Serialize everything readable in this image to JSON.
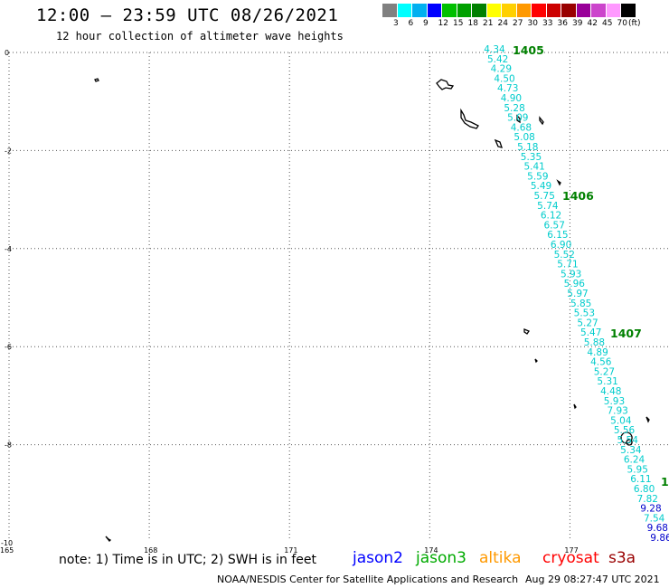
{
  "header": {
    "title": "12:00 — 23:59 UTC 08/26/2021",
    "subtitle": "12 hour collection of altimeter wave heights"
  },
  "legend": {
    "unit": "(ft)",
    "colors": [
      "#808080",
      "#00ffff",
      "#00b0f0",
      "#0000ff",
      "#00c000",
      "#00a000",
      "#008000",
      "#ffff00",
      "#ffd000",
      "#ff9900",
      "#ff0000",
      "#cc0000",
      "#990000",
      "#990099",
      "#cc44cc",
      "#ff99ff",
      "#000000"
    ],
    "labels": [
      "3",
      "6",
      "9",
      "12",
      "15",
      "18",
      "21",
      "24",
      "27",
      "30",
      "33",
      "36",
      "39",
      "42",
      "45",
      "70"
    ]
  },
  "map": {
    "lon_ticks": [
      "165",
      "168",
      "171",
      "174",
      "177"
    ],
    "lat_ticks": [
      "0",
      "-2",
      "-4",
      "-6",
      "-8",
      "-10"
    ],
    "track_color": "#00cccc",
    "track_color_high": "#0000cc",
    "track_values": [
      "4.34",
      "5.42",
      "4.29",
      "4.50",
      "4.73",
      "4.90",
      "5.28",
      "5.09",
      "4.68",
      "5.08",
      "5.18",
      "5.35",
      "5.41",
      "5.59",
      "5.49",
      "5.75",
      "5.74",
      "6.12",
      "6.57",
      "6.15",
      "6.90",
      "5.52",
      "5.71",
      "5.93",
      "5.96",
      "5.97",
      "5.85",
      "5.53",
      "5.27",
      "5.47",
      "5.88",
      "4.89",
      "4.56",
      "5.27",
      "5.31",
      "4.48",
      "5.93",
      "7.93",
      "5.04",
      "5.56",
      "5.54",
      "5.34",
      "6.24",
      "5.95",
      "6.11",
      "6.80",
      "7.82",
      "9.28",
      "7.54",
      "9.68",
      "9.86"
    ],
    "time_labels": [
      {
        "text": "1405",
        "color": "#008000"
      },
      {
        "text": "1406",
        "color": "#008000"
      },
      {
        "text": "1407",
        "color": "#008000"
      },
      {
        "text": "1",
        "color": "#008000"
      }
    ]
  },
  "footer": {
    "note": "note: 1) Time is in UTC; 2) SWH is in feet",
    "satellites": [
      {
        "name": "jason2",
        "color": "#0000ff"
      },
      {
        "name": "jason3",
        "color": "#00aa00"
      },
      {
        "name": "altika",
        "color": "#ff9900"
      },
      {
        "name": "cryosat",
        "color": "#ff0000"
      },
      {
        "name": "s3a",
        "color": "#990000"
      }
    ],
    "credit": "NOAA/NESDIS Center for Satellite Applications and Research",
    "timestamp": "Aug 29 08:27:47 UTC 2021"
  }
}
